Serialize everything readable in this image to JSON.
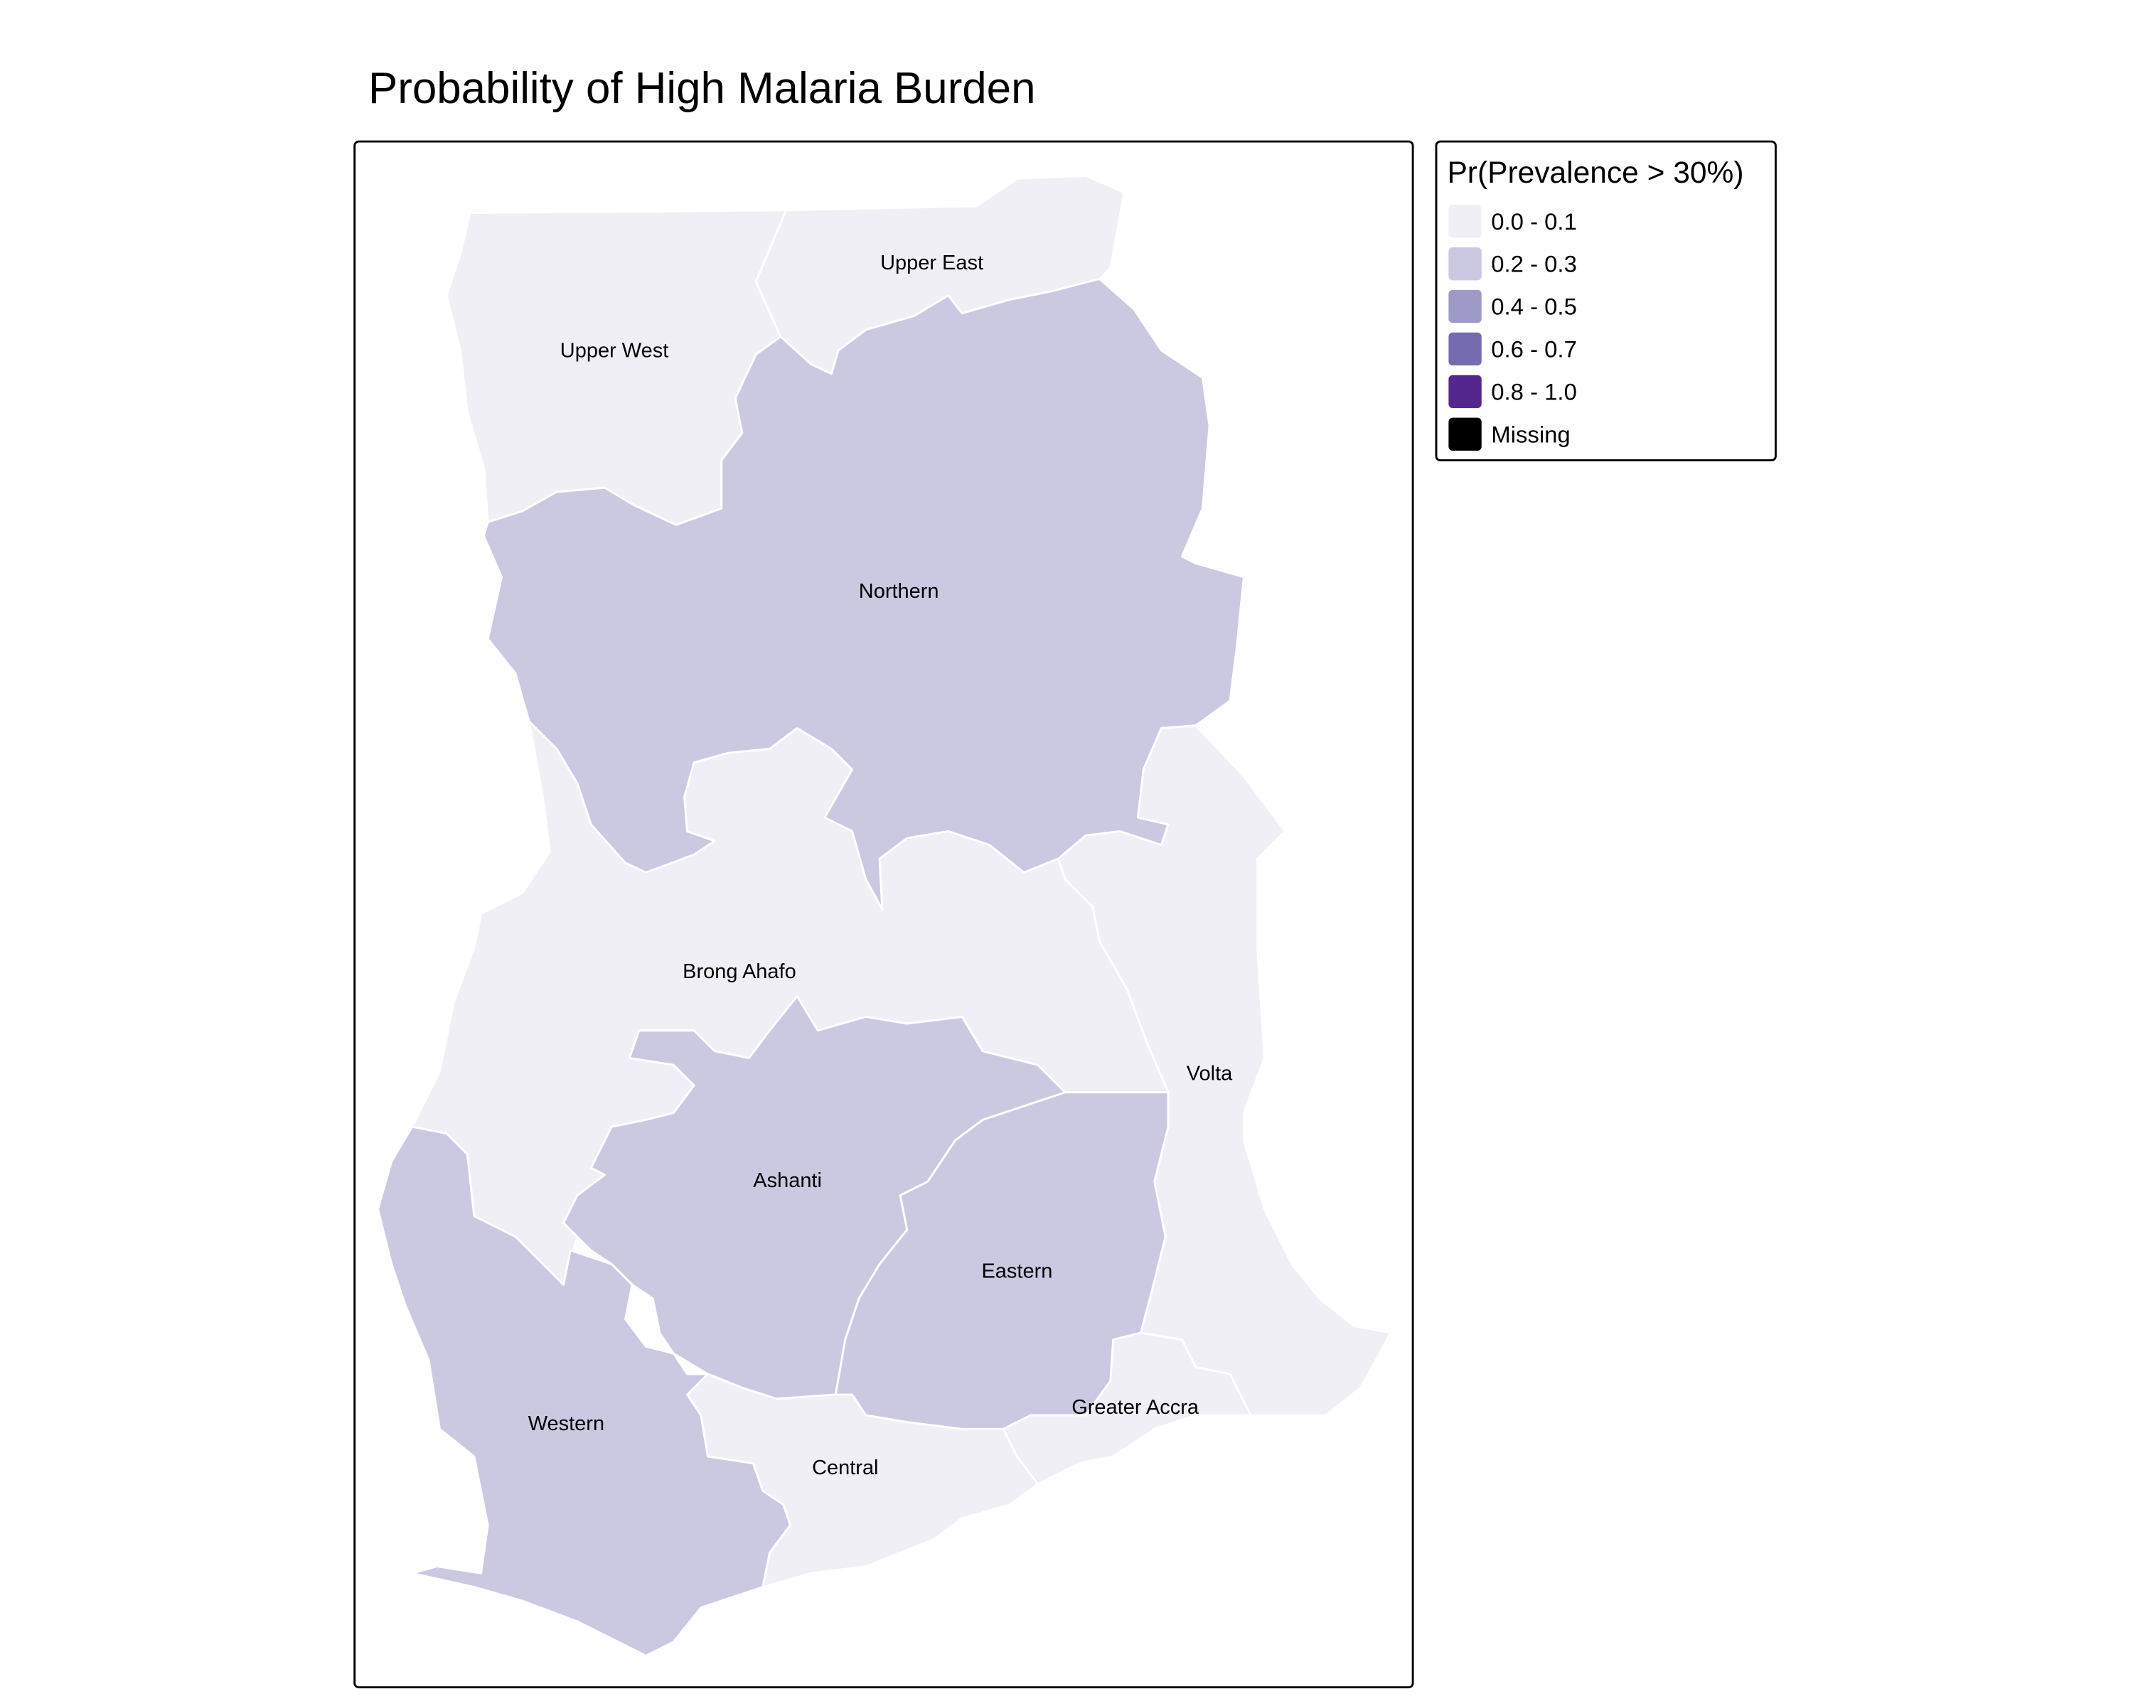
{
  "title": "Probability of High Malaria Burden",
  "legend": {
    "title": "Pr(Prevalence > 30%)",
    "items": [
      {
        "label": "0.0 - 0.1",
        "color": "#f0eff6"
      },
      {
        "label": "0.2 - 0.3",
        "color": "#cbc9e2"
      },
      {
        "label": "0.4 - 0.5",
        "color": "#9e9ac8"
      },
      {
        "label": "0.6 - 0.7",
        "color": "#756bb1"
      },
      {
        "label": "0.8 - 1.0",
        "color": "#54278f"
      },
      {
        "label": "Missing",
        "color": "#000000"
      }
    ]
  },
  "regions": [
    {
      "name": "Upper West",
      "color": "#f0eff6"
    },
    {
      "name": "Upper East",
      "color": "#f0eff6"
    },
    {
      "name": "Northern",
      "color": "#cbc9e2"
    },
    {
      "name": "Volta",
      "color": "#f0eff6"
    },
    {
      "name": "Brong Ahafo",
      "color": "#f0eff6"
    },
    {
      "name": "Ashanti",
      "color": "#cbc9e2"
    },
    {
      "name": "Eastern",
      "color": "#cbc9e2"
    },
    {
      "name": "Greater Accra",
      "color": "#f0eff6"
    },
    {
      "name": "Central",
      "color": "#f0eff6"
    },
    {
      "name": "Western",
      "color": "#cbc9e2"
    }
  ]
}
